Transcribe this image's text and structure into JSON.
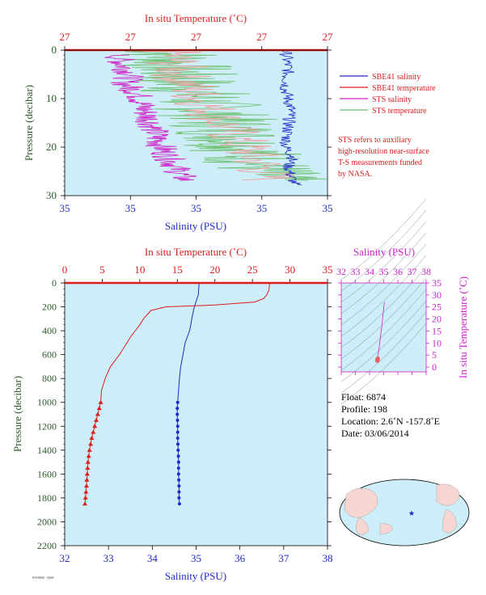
{
  "top": {
    "xlabel_bottom": "Salinity (PSU)",
    "xlabel_top": "In situ Temperature (˚C)",
    "ylabel": "Pressure (decibar)",
    "sal_ticks": [
      "35",
      "35",
      "35",
      "35",
      "35"
    ],
    "temp_ticks": [
      "27",
      "27",
      "27",
      "27",
      "27"
    ],
    "p_ticks": [
      "0",
      "10",
      "20",
      "30"
    ],
    "legend": [
      {
        "label": "SBE41 salinity",
        "color": "#1f2bc8"
      },
      {
        "label": "SBE41 temperature",
        "color": "#dd1c1c"
      },
      {
        "label": "STS salinity",
        "color": "#d020c8"
      },
      {
        "label": "STS temperature",
        "color": "#6cc070"
      }
    ],
    "note": [
      "STS refers to auxiliary",
      "high-resolution near-surface",
      "T-S measurements funded",
      "by NASA."
    ]
  },
  "main": {
    "xlabel_bottom": "Salinity (PSU)",
    "xlabel_top": "In situ Temperature (˚C)",
    "ylabel": "Pressure (decibar)",
    "sal_ticks": [
      "32",
      "33",
      "34",
      "35",
      "36",
      "37",
      "38"
    ],
    "temp_ticks": [
      "0",
      "5",
      "10",
      "15",
      "20",
      "25",
      "30",
      "35"
    ],
    "p_ticks": [
      "0",
      "200",
      "400",
      "600",
      "800",
      "1000",
      "1200",
      "1400",
      "1600",
      "1800",
      "2000",
      "2200"
    ]
  },
  "ts": {
    "xlabel": "Salinity (PSU)",
    "ylabel": "In situ Temperature (˚C)",
    "x_ticks": [
      "32",
      "33",
      "34",
      "35",
      "36",
      "37",
      "38"
    ],
    "y_ticks": [
      "0",
      "5",
      "10",
      "15",
      "20",
      "25",
      "30",
      "35"
    ]
  },
  "info": {
    "float": "Float:  6874",
    "profile": "Profile:  198",
    "location": "Location:  2.6˚N  -157.8˚E",
    "date": "Date:  03/06/2014"
  },
  "footer": "FSI-0000 - 0000",
  "colors": {
    "plot_bg": "#cdeef8",
    "salinity": "#1f2bc8",
    "temperature": "#dd1c1c",
    "sts_salinity": "#d020c8",
    "sts_temperature": "#6cc070",
    "sts_temp_light": "#f0a0a0",
    "pressure_axis": "#2a5a2a",
    "ts_axis": "#cc22cc"
  },
  "chart_data": [
    {
      "type": "line",
      "title": "",
      "xlabel": "Salinity (PSU)",
      "x2label": "In situ Temperature (˚C)",
      "ylabel": "Pressure (decibar)",
      "ylim": [
        30,
        0
      ],
      "series": [
        {
          "name": "SBE41 salinity",
          "p": [
            0,
            4,
            8,
            12,
            16,
            20,
            22,
            24,
            26,
            28
          ],
          "x": [
            0.84,
            0.85,
            0.84,
            0.86,
            0.85,
            0.84,
            0.87,
            0.85,
            0.86,
            0.88
          ]
        },
        {
          "name": "SBE41 temperature",
          "p": [
            0,
            30
          ],
          "x": [
            0.99,
            0.99
          ]
        },
        {
          "name": "STS salinity",
          "p": [
            1,
            3,
            5,
            7,
            9,
            12,
            15,
            18,
            21,
            24,
            27
          ],
          "x": [
            0.2,
            0.22,
            0.25,
            0.23,
            0.28,
            0.3,
            0.33,
            0.35,
            0.38,
            0.42,
            0.46
          ]
        },
        {
          "name": "STS temperature",
          "p": [
            0,
            3,
            6,
            9,
            12,
            15,
            18,
            21,
            24,
            27
          ],
          "x": [
            0.4,
            0.42,
            0.45,
            0.5,
            0.55,
            0.6,
            0.65,
            0.7,
            0.75,
            0.78
          ]
        }
      ]
    },
    {
      "type": "line",
      "title": "",
      "xlabel": "Salinity (PSU)",
      "x2label": "In situ Temperature (˚C)",
      "ylabel": "Pressure (decibar)",
      "xlim": [
        32,
        38
      ],
      "x2lim": [
        0,
        35
      ],
      "ylim": [
        2200,
        0
      ],
      "series": [
        {
          "name": "Salinity",
          "x": [
            35.07,
            35.05,
            34.96,
            34.93,
            34.9,
            34.88,
            34.85,
            34.8,
            34.75,
            34.7,
            34.65,
            34.62,
            34.6,
            34.58,
            34.57,
            34.57,
            34.58,
            34.58,
            34.59,
            34.6,
            34.6,
            34.61,
            34.61,
            34.62
          ],
          "p": [
            0,
            100,
            200,
            250,
            300,
            350,
            400,
            450,
            500,
            600,
            700,
            800,
            900,
            1000,
            1050,
            1100,
            1200,
            1300,
            1400,
            1500,
            1600,
            1700,
            1800,
            1850
          ]
        },
        {
          "name": "Temperature",
          "x": [
            27.3,
            27.2,
            26.9,
            26.5,
            25.3,
            20.0,
            13.5,
            11.5,
            10.5,
            10.0,
            8.8,
            7.3,
            6.1,
            5.4,
            4.9,
            4.8,
            4.4,
            4.0,
            3.6,
            3.3,
            3.1,
            3.0,
            2.9,
            2.7
          ],
          "p": [
            0,
            60,
            100,
            130,
            160,
            185,
            200,
            230,
            300,
            350,
            450,
            600,
            700,
            800,
            900,
            1000,
            1100,
            1200,
            1300,
            1400,
            1500,
            1600,
            1700,
            1850
          ]
        }
      ],
      "markers_from_p": 1000
    },
    {
      "type": "scatter",
      "title": "",
      "xlabel": "Salinity (PSU)",
      "ylabel": "In situ Temperature (˚C)",
      "xlim": [
        32,
        38
      ],
      "ylim": [
        -2,
        35
      ],
      "x": [
        34.55,
        34.56,
        34.58,
        34.6,
        34.62,
        34.65,
        34.7,
        34.75,
        34.8,
        34.86,
        34.9,
        34.95,
        35.0,
        35.05
      ],
      "y": [
        2.7,
        3.0,
        3.5,
        4.5,
        5.5,
        7.0,
        9.0,
        11.5,
        14.0,
        16.5,
        19.0,
        22.0,
        24.5,
        27.0
      ]
    }
  ]
}
